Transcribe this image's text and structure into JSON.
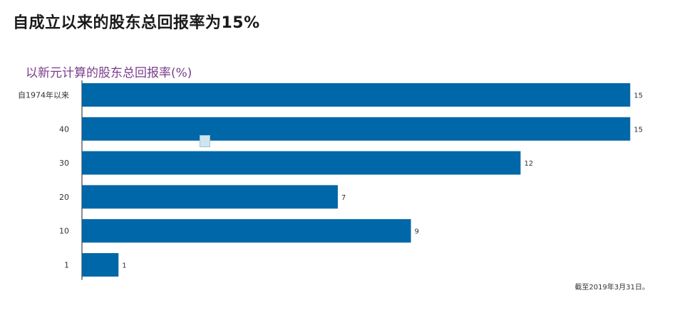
{
  "title": "自成立以来的股东总回报率为15%",
  "footnote": "截至2019年3月31日。",
  "colors": {
    "bar": "#0067a8",
    "subtitle": "#7a3b8c",
    "axis": "#666666"
  },
  "chart_data": {
    "type": "bar",
    "orientation": "horizontal",
    "title": "以新元计算的股东总回报率(%)",
    "xlabel": "",
    "ylabel": "",
    "categories": [
      "自1974年以来",
      "40",
      "30",
      "20",
      "10",
      "1"
    ],
    "values": [
      15,
      15,
      12,
      7,
      9,
      1
    ],
    "xlim": [
      0,
      15.5
    ],
    "grid": false
  }
}
